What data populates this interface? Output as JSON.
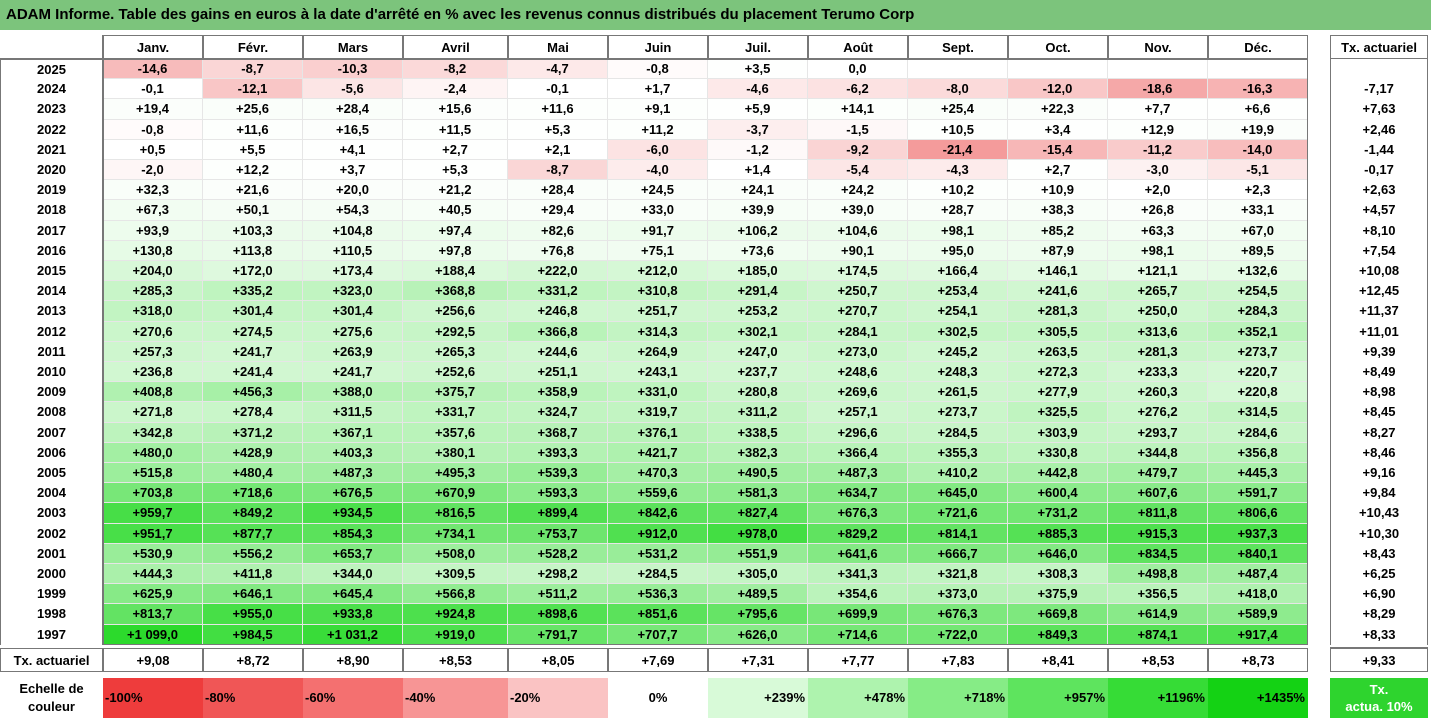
{
  "title": "ADAM Informe. Table des gains en euros à la date d'arrêté en % avec les revenus connus distribués du placement Terumo Corp",
  "months": [
    "Janv.",
    "Févr.",
    "Mars",
    "Avril",
    "Mai",
    "Juin",
    "Juil.",
    "Août",
    "Sept.",
    "Oct.",
    "Nov.",
    "Déc."
  ],
  "actuarial_header": "Tx. actuariel",
  "rows": [
    {
      "year": "2025",
      "values": [
        "-14,6",
        "-8,7",
        "-10,3",
        "-8,2",
        "-4,7",
        "-0,8",
        "+3,5",
        "0,0",
        "",
        "",
        "",
        ""
      ],
      "act": ""
    },
    {
      "year": "2024",
      "values": [
        "-0,1",
        "-12,1",
        "-5,6",
        "-2,4",
        "-0,1",
        "+1,7",
        "-4,6",
        "-6,2",
        "-8,0",
        "-12,0",
        "-18,6",
        "-16,3"
      ],
      "act": "-7,17"
    },
    {
      "year": "2023",
      "values": [
        "+19,4",
        "+25,6",
        "+28,4",
        "+15,6",
        "+11,6",
        "+9,1",
        "+5,9",
        "+14,1",
        "+25,4",
        "+22,3",
        "+7,7",
        "+6,6"
      ],
      "act": "+7,63"
    },
    {
      "year": "2022",
      "values": [
        "-0,8",
        "+11,6",
        "+16,5",
        "+11,5",
        "+5,3",
        "+11,2",
        "-3,7",
        "-1,5",
        "+10,5",
        "+3,4",
        "+12,9",
        "+19,9"
      ],
      "act": "+2,46"
    },
    {
      "year": "2021",
      "values": [
        "+0,5",
        "+5,5",
        "+4,1",
        "+2,7",
        "+2,1",
        "-6,0",
        "-1,2",
        "-9,2",
        "-21,4",
        "-15,4",
        "-11,2",
        "-14,0"
      ],
      "act": "-1,44"
    },
    {
      "year": "2020",
      "values": [
        "-2,0",
        "+12,2",
        "+3,7",
        "+5,3",
        "-8,7",
        "-4,0",
        "+1,4",
        "-5,4",
        "-4,3",
        "+2,7",
        "-3,0",
        "-5,1"
      ],
      "act": "-0,17"
    },
    {
      "year": "2019",
      "values": [
        "+32,3",
        "+21,6",
        "+20,0",
        "+21,2",
        "+28,4",
        "+24,5",
        "+24,1",
        "+24,2",
        "+10,2",
        "+10,9",
        "+2,0",
        "+2,3"
      ],
      "act": "+2,63"
    },
    {
      "year": "2018",
      "values": [
        "+67,3",
        "+50,1",
        "+54,3",
        "+40,5",
        "+29,4",
        "+33,0",
        "+39,9",
        "+39,0",
        "+28,7",
        "+38,3",
        "+26,8",
        "+33,1"
      ],
      "act": "+4,57"
    },
    {
      "year": "2017",
      "values": [
        "+93,9",
        "+103,3",
        "+104,8",
        "+97,4",
        "+82,6",
        "+91,7",
        "+106,2",
        "+104,6",
        "+98,1",
        "+85,2",
        "+63,3",
        "+67,0"
      ],
      "act": "+8,10"
    },
    {
      "year": "2016",
      "values": [
        "+130,8",
        "+113,8",
        "+110,5",
        "+97,8",
        "+76,8",
        "+75,1",
        "+73,6",
        "+90,1",
        "+95,0",
        "+87,9",
        "+98,1",
        "+89,5"
      ],
      "act": "+7,54"
    },
    {
      "year": "2015",
      "values": [
        "+204,0",
        "+172,0",
        "+173,4",
        "+188,4",
        "+222,0",
        "+212,0",
        "+185,0",
        "+174,5",
        "+166,4",
        "+146,1",
        "+121,1",
        "+132,6"
      ],
      "act": "+10,08"
    },
    {
      "year": "2014",
      "values": [
        "+285,3",
        "+335,2",
        "+323,0",
        "+368,8",
        "+331,2",
        "+310,8",
        "+291,4",
        "+250,7",
        "+253,4",
        "+241,6",
        "+265,7",
        "+254,5"
      ],
      "act": "+12,45"
    },
    {
      "year": "2013",
      "values": [
        "+318,0",
        "+301,4",
        "+301,4",
        "+256,6",
        "+246,8",
        "+251,7",
        "+253,2",
        "+270,7",
        "+254,1",
        "+281,3",
        "+250,0",
        "+284,3"
      ],
      "act": "+11,37"
    },
    {
      "year": "2012",
      "values": [
        "+270,6",
        "+274,5",
        "+275,6",
        "+292,5",
        "+366,8",
        "+314,3",
        "+302,1",
        "+284,1",
        "+302,5",
        "+305,5",
        "+313,6",
        "+352,1"
      ],
      "act": "+11,01"
    },
    {
      "year": "2011",
      "values": [
        "+257,3",
        "+241,7",
        "+263,9",
        "+265,3",
        "+244,6",
        "+264,9",
        "+247,0",
        "+273,0",
        "+245,2",
        "+263,5",
        "+281,3",
        "+273,7"
      ],
      "act": "+9,39"
    },
    {
      "year": "2010",
      "values": [
        "+236,8",
        "+241,4",
        "+241,7",
        "+252,6",
        "+251,1",
        "+243,1",
        "+237,7",
        "+248,6",
        "+248,3",
        "+272,3",
        "+233,3",
        "+220,7"
      ],
      "act": "+8,49"
    },
    {
      "year": "2009",
      "values": [
        "+408,8",
        "+456,3",
        "+388,0",
        "+375,7",
        "+358,9",
        "+331,0",
        "+280,8",
        "+269,6",
        "+261,5",
        "+277,9",
        "+260,3",
        "+220,8"
      ],
      "act": "+8,98"
    },
    {
      "year": "2008",
      "values": [
        "+271,8",
        "+278,4",
        "+311,5",
        "+331,7",
        "+324,7",
        "+319,7",
        "+311,2",
        "+257,1",
        "+273,7",
        "+325,5",
        "+276,2",
        "+314,5"
      ],
      "act": "+8,45"
    },
    {
      "year": "2007",
      "values": [
        "+342,8",
        "+371,2",
        "+367,1",
        "+357,6",
        "+368,7",
        "+376,1",
        "+338,5",
        "+296,6",
        "+284,5",
        "+303,9",
        "+293,7",
        "+284,6"
      ],
      "act": "+8,27"
    },
    {
      "year": "2006",
      "values": [
        "+480,0",
        "+428,9",
        "+403,3",
        "+380,1",
        "+393,3",
        "+421,7",
        "+382,3",
        "+366,4",
        "+355,3",
        "+330,8",
        "+344,8",
        "+356,8"
      ],
      "act": "+8,46"
    },
    {
      "year": "2005",
      "values": [
        "+515,8",
        "+480,4",
        "+487,3",
        "+495,3",
        "+539,3",
        "+470,3",
        "+490,5",
        "+487,3",
        "+410,2",
        "+442,8",
        "+479,7",
        "+445,3"
      ],
      "act": "+9,16"
    },
    {
      "year": "2004",
      "values": [
        "+703,8",
        "+718,6",
        "+676,5",
        "+670,9",
        "+593,3",
        "+559,6",
        "+581,3",
        "+634,7",
        "+645,0",
        "+600,4",
        "+607,6",
        "+591,7"
      ],
      "act": "+9,84"
    },
    {
      "year": "2003",
      "values": [
        "+959,7",
        "+849,2",
        "+934,5",
        "+816,5",
        "+899,4",
        "+842,6",
        "+827,4",
        "+676,3",
        "+721,6",
        "+731,2",
        "+811,8",
        "+806,6"
      ],
      "act": "+10,43"
    },
    {
      "year": "2002",
      "values": [
        "+951,7",
        "+877,7",
        "+854,3",
        "+734,1",
        "+753,7",
        "+912,0",
        "+978,0",
        "+829,2",
        "+814,1",
        "+885,3",
        "+915,3",
        "+937,3"
      ],
      "act": "+10,30"
    },
    {
      "year": "2001",
      "values": [
        "+530,9",
        "+556,2",
        "+653,7",
        "+508,0",
        "+528,2",
        "+531,2",
        "+551,9",
        "+641,6",
        "+666,7",
        "+646,0",
        "+834,5",
        "+840,1"
      ],
      "act": "+8,43"
    },
    {
      "year": "2000",
      "values": [
        "+444,3",
        "+411,8",
        "+344,0",
        "+309,5",
        "+298,2",
        "+284,5",
        "+305,0",
        "+341,3",
        "+321,8",
        "+308,3",
        "+498,8",
        "+487,4"
      ],
      "act": "+6,25"
    },
    {
      "year": "1999",
      "values": [
        "+625,9",
        "+646,1",
        "+645,4",
        "+566,8",
        "+511,2",
        "+536,3",
        "+489,5",
        "+354,6",
        "+373,0",
        "+375,9",
        "+356,5",
        "+418,0"
      ],
      "act": "+6,90"
    },
    {
      "year": "1998",
      "values": [
        "+813,7",
        "+955,0",
        "+933,8",
        "+924,8",
        "+898,6",
        "+851,6",
        "+795,6",
        "+699,9",
        "+676,3",
        "+669,8",
        "+614,9",
        "+589,9"
      ],
      "act": "+8,29"
    },
    {
      "year": "1997",
      "values": [
        "+1 099,0",
        "+984,5",
        "+1 031,2",
        "+919,0",
        "+791,7",
        "+707,7",
        "+626,0",
        "+714,6",
        "+722,0",
        "+849,3",
        "+874,1",
        "+917,4"
      ],
      "act": "+8,33"
    }
  ],
  "footer": {
    "label": "Tx. actuariel",
    "values": [
      "+9,08",
      "+8,72",
      "+8,90",
      "+8,53",
      "+8,05",
      "+7,69",
      "+7,31",
      "+7,77",
      "+7,83",
      "+8,41",
      "+8,53",
      "+8,73"
    ],
    "act": "+9,33"
  },
  "scale": {
    "label_line1": "Echelle de",
    "label_line2": "couleur",
    "items": [
      {
        "label": "-100%",
        "color": "#ee3c3c"
      },
      {
        "label": "-80%",
        "color": "#f05656"
      },
      {
        "label": "-60%",
        "color": "#f47070"
      },
      {
        "label": "-40%",
        "color": "#f79595"
      },
      {
        "label": "-20%",
        "color": "#fac3c3"
      },
      {
        "label": "0%",
        "color": "#ffffff"
      },
      {
        "label": "+239%",
        "color": "#d8fad8"
      },
      {
        "label": "+478%",
        "color": "#aef3ae"
      },
      {
        "label": "+718%",
        "color": "#86ec86"
      },
      {
        "label": "+957%",
        "color": "#5ee45e"
      },
      {
        "label": "+1196%",
        "color": "#36dc36"
      },
      {
        "label": "+1435%",
        "color": "#14d214"
      }
    ],
    "target_line1": "Tx.",
    "target_line2": "actua. 10%",
    "target_color": "#2ed42e"
  }
}
